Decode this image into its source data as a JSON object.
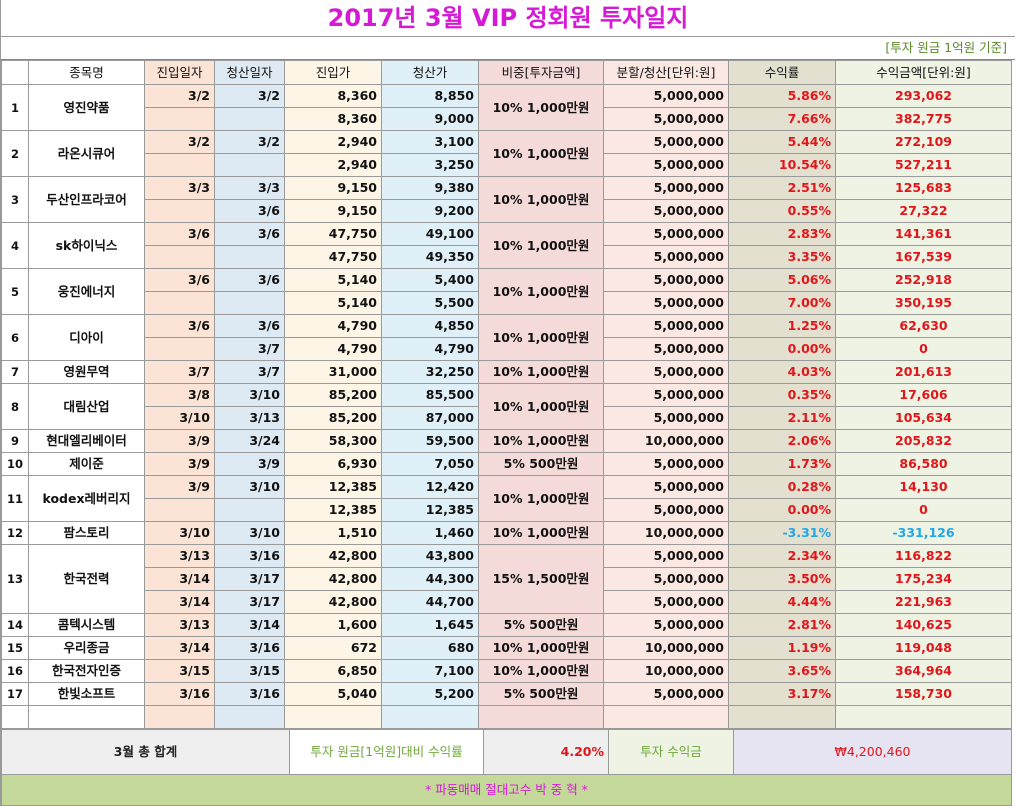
{
  "title": "2017년 3월 VIP 정회원 투자일지",
  "note": "[투자 원금 1억원 기준]",
  "headers": [
    "",
    "종목명",
    "진입일자",
    "청산일자",
    "진입가",
    "청산가",
    "비중[투자금액]",
    "분할/청산[단위:원]",
    "수익률",
    "수익금액[단위:원]"
  ],
  "stocks": [
    {
      "no": "1",
      "name": "영진약품",
      "weight": "10% 1,000만원",
      "rows": [
        {
          "d1": "3/2",
          "d2": "3/2",
          "p1": "8,360",
          "p2": "8,850",
          "split": "5,000,000",
          "rate": "5.86%",
          "amt": "293,062"
        },
        {
          "d1": "",
          "d2": "",
          "p1": "8,360",
          "p2": "9,000",
          "split": "5,000,000",
          "rate": "7.66%",
          "amt": "382,775"
        }
      ]
    },
    {
      "no": "2",
      "name": "라온시큐어",
      "weight": "10% 1,000만원",
      "rows": [
        {
          "d1": "3/2",
          "d2": "3/2",
          "p1": "2,940",
          "p2": "3,100",
          "split": "5,000,000",
          "rate": "5.44%",
          "amt": "272,109"
        },
        {
          "d1": "",
          "d2": "",
          "p1": "2,940",
          "p2": "3,250",
          "split": "5,000,000",
          "rate": "10.54%",
          "amt": "527,211"
        }
      ]
    },
    {
      "no": "3",
      "name": "두산인프라코어",
      "weight": "10% 1,000만원",
      "rows": [
        {
          "d1": "3/3",
          "d2": "3/3",
          "p1": "9,150",
          "p2": "9,380",
          "split": "5,000,000",
          "rate": "2.51%",
          "amt": "125,683"
        },
        {
          "d1": "",
          "d2": "3/6",
          "p1": "9,150",
          "p2": "9,200",
          "split": "5,000,000",
          "rate": "0.55%",
          "amt": "27,322"
        }
      ]
    },
    {
      "no": "4",
      "name": "sk하이닉스",
      "weight": "10% 1,000만원",
      "rows": [
        {
          "d1": "3/6",
          "d2": "3/6",
          "p1": "47,750",
          "p2": "49,100",
          "split": "5,000,000",
          "rate": "2.83%",
          "amt": "141,361"
        },
        {
          "d1": "",
          "d2": "",
          "p1": "47,750",
          "p2": "49,350",
          "split": "5,000,000",
          "rate": "3.35%",
          "amt": "167,539"
        }
      ]
    },
    {
      "no": "5",
      "name": "웅진에너지",
      "weight": "10% 1,000만원",
      "rows": [
        {
          "d1": "3/6",
          "d2": "3/6",
          "p1": "5,140",
          "p2": "5,400",
          "split": "5,000,000",
          "rate": "5.06%",
          "amt": "252,918"
        },
        {
          "d1": "",
          "d2": "",
          "p1": "5,140",
          "p2": "5,500",
          "split": "5,000,000",
          "rate": "7.00%",
          "amt": "350,195"
        }
      ]
    },
    {
      "no": "6",
      "name": "디아이",
      "weight": "10% 1,000만원",
      "rows": [
        {
          "d1": "3/6",
          "d2": "3/6",
          "p1": "4,790",
          "p2": "4,850",
          "split": "5,000,000",
          "rate": "1.25%",
          "amt": "62,630"
        },
        {
          "d1": "",
          "d2": "3/7",
          "p1": "4,790",
          "p2": "4,790",
          "split": "5,000,000",
          "rate": "0.00%",
          "amt": "0"
        }
      ]
    },
    {
      "no": "7",
      "name": "영원무역",
      "weight": "10% 1,000만원",
      "rows": [
        {
          "d1": "3/7",
          "d2": "3/7",
          "p1": "31,000",
          "p2": "32,250",
          "split": "5,000,000",
          "rate": "4.03%",
          "amt": "201,613"
        }
      ]
    },
    {
      "no": "8",
      "name": "대림산업",
      "weight": "10% 1,000만원",
      "rows": [
        {
          "d1": "3/8",
          "d2": "3/10",
          "p1": "85,200",
          "p2": "85,500",
          "split": "5,000,000",
          "rate": "0.35%",
          "amt": "17,606"
        },
        {
          "d1": "3/10",
          "d2": "3/13",
          "p1": "85,200",
          "p2": "87,000",
          "split": "5,000,000",
          "rate": "2.11%",
          "amt": "105,634"
        }
      ]
    },
    {
      "no": "9",
      "name": "현대엘리베이터",
      "weight": "10% 1,000만원",
      "rows": [
        {
          "d1": "3/9",
          "d2": "3/24",
          "p1": "58,300",
          "p2": "59,500",
          "split": "10,000,000",
          "rate": "2.06%",
          "amt": "205,832"
        }
      ]
    },
    {
      "no": "10",
      "name": "제이준",
      "weight": "5% 500만원",
      "rows": [
        {
          "d1": "3/9",
          "d2": "3/9",
          "p1": "6,930",
          "p2": "7,050",
          "split": "5,000,000",
          "rate": "1.73%",
          "amt": "86,580"
        }
      ]
    },
    {
      "no": "11",
      "name": "kodex레버리지",
      "weight": "10% 1,000만원",
      "rows": [
        {
          "d1": "3/9",
          "d2": "3/10",
          "p1": "12,385",
          "p2": "12,420",
          "split": "5,000,000",
          "rate": "0.28%",
          "amt": "14,130"
        },
        {
          "d1": "",
          "d2": "",
          "p1": "12,385",
          "p2": "12,385",
          "split": "5,000,000",
          "rate": "0.00%",
          "amt": "0"
        }
      ]
    },
    {
      "no": "12",
      "name": "팜스토리",
      "weight": "10% 1,000만원",
      "rows": [
        {
          "d1": "3/10",
          "d2": "3/10",
          "p1": "1,510",
          "p2": "1,460",
          "split": "10,000,000",
          "rate": "-3.31%",
          "amt": "-331,126",
          "neg": true
        }
      ]
    },
    {
      "no": "13",
      "name": "한국전력",
      "weight": "15% 1,500만원",
      "rows": [
        {
          "d1": "3/13",
          "d2": "3/16",
          "p1": "42,800",
          "p2": "43,800",
          "split": "5,000,000",
          "rate": "2.34%",
          "amt": "116,822"
        },
        {
          "d1": "3/14",
          "d2": "3/17",
          "p1": "42,800",
          "p2": "44,300",
          "split": "5,000,000",
          "rate": "3.50%",
          "amt": "175,234"
        },
        {
          "d1": "3/14",
          "d2": "3/17",
          "p1": "42,800",
          "p2": "44,700",
          "split": "5,000,000",
          "rate": "4.44%",
          "amt": "221,963"
        }
      ]
    },
    {
      "no": "14",
      "name": "콤텍시스템",
      "weight": "5% 500만원",
      "rows": [
        {
          "d1": "3/13",
          "d2": "3/14",
          "p1": "1,600",
          "p2": "1,645",
          "split": "5,000,000",
          "rate": "2.81%",
          "amt": "140,625"
        }
      ]
    },
    {
      "no": "15",
      "name": "우리종금",
      "weight": "10% 1,000만원",
      "rows": [
        {
          "d1": "3/14",
          "d2": "3/16",
          "p1": "672",
          "p2": "680",
          "split": "10,000,000",
          "rate": "1.19%",
          "amt": "119,048"
        }
      ]
    },
    {
      "no": "16",
      "name": "한국전자인증",
      "weight": "10% 1,000만원",
      "rows": [
        {
          "d1": "3/15",
          "d2": "3/15",
          "p1": "6,850",
          "p2": "7,100",
          "split": "10,000,000",
          "rate": "3.65%",
          "amt": "364,964"
        }
      ]
    },
    {
      "no": "17",
      "name": "한빛소프트",
      "weight": "5% 500만원",
      "rows": [
        {
          "d1": "3/16",
          "d2": "3/16",
          "p1": "5,040",
          "p2": "5,200",
          "split": "5,000,000",
          "rate": "3.17%",
          "amt": "158,730"
        }
      ]
    }
  ],
  "summary": {
    "label": "3월 총 합계",
    "rate_label": "투자 원금[1억원]대비 수익률",
    "rate": "4.20%",
    "profit_label": "투자 수익금",
    "profit": "₩4,200,460"
  },
  "footer": "* 파동매매 절대고수 박 중 혁 *",
  "colors": {
    "title": "#d41ad4",
    "positive": "#e0161b",
    "negative": "#21a7e6",
    "note": "#5a8a2a"
  }
}
